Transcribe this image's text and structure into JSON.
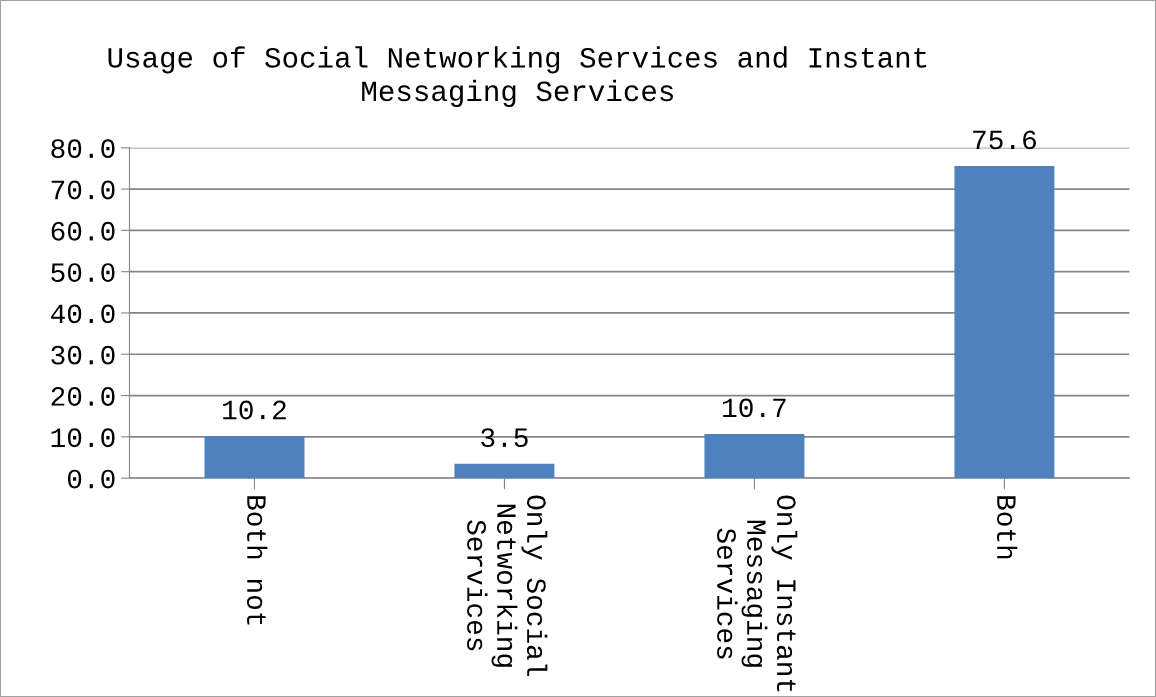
{
  "chart_data": {
    "type": "bar",
    "title": "Usage of Social Networking Services and Instant\nMessaging Services",
    "categories": [
      "Both not",
      "Only Social\nNetworking\nServices",
      "Only Instant\nMessaging\nServices",
      "Both"
    ],
    "values": [
      10.2,
      3.5,
      10.7,
      75.6
    ],
    "color": "#4f81bd",
    "ylim": [
      0,
      80
    ],
    "yticks": [
      {
        "value": 0,
        "label": "0.0"
      },
      {
        "value": 10,
        "label": "10.0"
      },
      {
        "value": 20,
        "label": "20.0"
      },
      {
        "value": 30,
        "label": "30.0"
      },
      {
        "value": 40,
        "label": "40.0"
      },
      {
        "value": 50,
        "label": "50.0"
      },
      {
        "value": 60,
        "label": "60.0"
      },
      {
        "value": 70,
        "label": "70.0"
      },
      {
        "value": 80,
        "label": "80.0"
      }
    ],
    "grid": "y",
    "data_labels": true,
    "legend": false
  }
}
